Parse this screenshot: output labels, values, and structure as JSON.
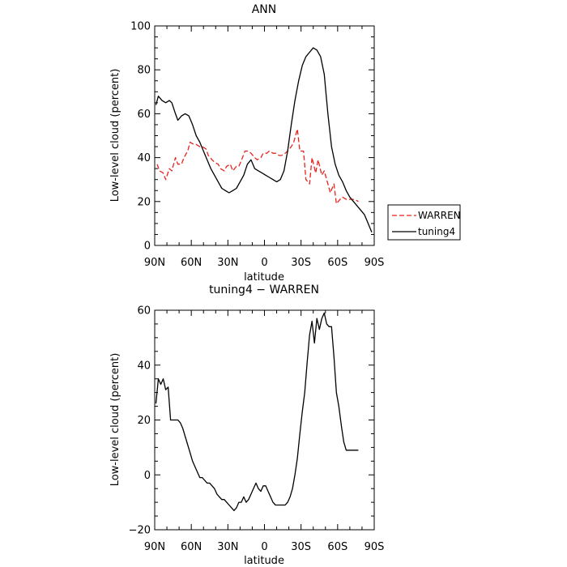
{
  "chart_data": [
    {
      "type": "line",
      "title": "ANN",
      "xlabel": "latitude",
      "ylabel": "Low-level cloud (percent)",
      "xlim": [
        90,
        -90
      ],
      "ylim": [
        0,
        100
      ],
      "x_ticks": [
        90,
        60,
        30,
        0,
        -30,
        -60,
        -90
      ],
      "x_tick_labels": [
        "90N",
        "60N",
        "30N",
        "0",
        "30S",
        "60S",
        "90S"
      ],
      "y_ticks": [
        0,
        20,
        40,
        60,
        80,
        100
      ],
      "y_tick_labels": [
        "0",
        "20",
        "40",
        "60",
        "80",
        "100"
      ],
      "legend": {
        "placement": "right",
        "entries": [
          "WARREN",
          "tuning4"
        ]
      },
      "series": [
        {
          "name": "WARREN",
          "color": "#e8231c",
          "dash": true,
          "x": [
            88,
            86,
            83,
            81,
            78,
            76,
            73,
            71,
            68,
            66,
            63,
            61,
            58,
            56,
            53,
            51,
            48,
            46,
            43,
            41,
            38,
            36,
            33,
            31,
            28,
            26,
            23,
            21,
            18,
            16,
            13,
            11,
            8,
            6,
            3,
            1,
            -2,
            -4,
            -7,
            -9,
            -12,
            -14,
            -17,
            -19,
            -22,
            -24,
            -27,
            -29,
            -32,
            -34,
            -37,
            -39,
            -42,
            -44,
            -47,
            -49,
            -52,
            -54,
            -57,
            -59,
            -62,
            -64,
            -67,
            -69,
            -72,
            -74,
            -77
          ],
          "y": [
            37,
            34,
            33,
            30,
            35,
            34,
            40,
            37,
            37,
            40,
            43,
            47,
            46,
            46,
            45,
            45,
            44,
            41,
            39,
            38,
            37,
            35,
            34,
            36,
            37,
            34,
            36,
            36,
            40,
            43,
            43,
            42,
            40,
            39,
            40,
            42,
            42,
            43,
            42,
            42,
            41,
            41,
            42,
            43,
            45,
            47,
            53,
            43,
            43,
            30,
            28,
            40,
            33,
            39,
            32,
            34,
            28,
            24,
            28,
            19,
            21,
            22,
            21,
            21,
            21,
            21,
            20
          ]
        },
        {
          "name": "tuning4",
          "color": "#000000",
          "dash": false,
          "x": [
            89,
            87,
            84,
            81,
            78,
            76,
            73,
            71,
            68,
            65,
            62,
            59,
            56,
            53,
            50,
            47,
            44,
            41,
            38,
            35,
            32,
            29,
            26,
            23,
            20,
            17,
            14,
            11,
            8,
            5,
            2,
            -1,
            -4,
            -7,
            -10,
            -13,
            -16,
            -19,
            -22,
            -25,
            -28,
            -31,
            -34,
            -37,
            -40,
            -43,
            -46,
            -49,
            -52,
            -55,
            -58,
            -61,
            -64,
            -67,
            -70,
            -73,
            -76,
            -79,
            -82,
            -85,
            -88
          ],
          "y": [
            64,
            68,
            66,
            65,
            66,
            65,
            60,
            57,
            59,
            60,
            59,
            55,
            50,
            47,
            43,
            39,
            35,
            32,
            29,
            26,
            25,
            24,
            25,
            26,
            29,
            32,
            37,
            39,
            35,
            34,
            33,
            32,
            31,
            30,
            29,
            30,
            34,
            43,
            55,
            66,
            75,
            82,
            86,
            88,
            90,
            89,
            86,
            78,
            60,
            45,
            37,
            32,
            29,
            25,
            22,
            20,
            18,
            16,
            14,
            10,
            6
          ]
        }
      ]
    },
    {
      "type": "line",
      "title": "tuning4 − WARREN",
      "xlabel": "latitude",
      "ylabel": "Low-level cloud (percent)",
      "xlim": [
        90,
        -90
      ],
      "ylim": [
        -20,
        60
      ],
      "x_ticks": [
        90,
        60,
        30,
        0,
        -30,
        -60,
        -90
      ],
      "x_tick_labels": [
        "90N",
        "60N",
        "30N",
        "0",
        "30S",
        "60S",
        "90S"
      ],
      "y_ticks": [
        -20,
        0,
        20,
        40,
        60
      ],
      "y_tick_labels": [
        "−20",
        "0",
        "20",
        "40",
        "60"
      ],
      "series": [
        {
          "color": "#000000",
          "dash": false,
          "x": [
            89,
            87,
            85,
            83,
            81,
            79,
            77,
            75,
            73,
            71,
            69,
            67,
            65,
            63,
            61,
            59,
            57,
            55,
            53,
            51,
            49,
            47,
            45,
            43,
            41,
            39,
            37,
            35,
            33,
            31,
            29,
            27,
            25,
            23,
            21,
            19,
            17,
            15,
            13,
            11,
            9,
            7,
            5,
            3,
            1,
            -1,
            -3,
            -5,
            -7,
            -9,
            -11,
            -13,
            -15,
            -17,
            -19,
            -21,
            -23,
            -25,
            -27,
            -29,
            -31,
            -33,
            -35,
            -37,
            -39,
            -41,
            -43,
            -45,
            -47,
            -49,
            -51,
            -53,
            -55,
            -57,
            -59,
            -61,
            -63,
            -65,
            -67,
            -69,
            -71,
            -73,
            -75,
            -77
          ],
          "y": [
            26,
            35,
            33,
            35,
            31,
            32,
            20,
            20,
            20,
            20,
            19,
            17,
            14,
            11,
            8,
            5,
            3,
            1,
            -1,
            -1,
            -2,
            -3,
            -3,
            -4,
            -5,
            -7,
            -8,
            -9,
            -9,
            -10,
            -11,
            -12,
            -13,
            -12,
            -10,
            -10,
            -8,
            -10,
            -9,
            -7,
            -5,
            -3,
            -5,
            -6,
            -4,
            -4,
            -6,
            -8,
            -10,
            -11,
            -11,
            -11,
            -11,
            -11,
            -10,
            -8,
            -5,
            0,
            6,
            15,
            23,
            30,
            41,
            51,
            56,
            48,
            57,
            53,
            57,
            59,
            55,
            54,
            54,
            43,
            30,
            25,
            18,
            12,
            9,
            9,
            9,
            9,
            9,
            9
          ]
        }
      ]
    }
  ]
}
